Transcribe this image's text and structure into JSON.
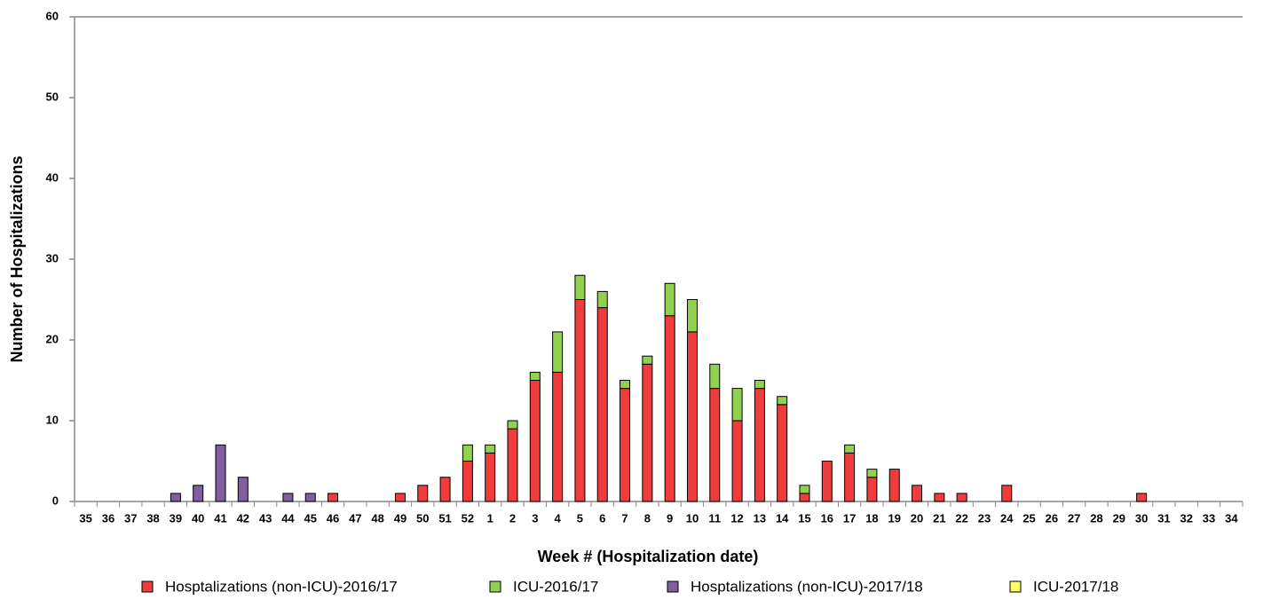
{
  "chart_data": {
    "type": "stacked-bar",
    "x_label": "Week # (Hospitalization date)",
    "y_label": "Number of Hospitalizations",
    "categories": [
      "35",
      "36",
      "37",
      "38",
      "39",
      "40",
      "41",
      "42",
      "43",
      "44",
      "45",
      "46",
      "47",
      "48",
      "49",
      "50",
      "51",
      "52",
      "1",
      "2",
      "3",
      "4",
      "5",
      "6",
      "7",
      "8",
      "9",
      "10",
      "11",
      "12",
      "13",
      "14",
      "15",
      "16",
      "17",
      "18",
      "19",
      "20",
      "21",
      "22",
      "23",
      "24",
      "25",
      "26",
      "27",
      "28",
      "29",
      "30",
      "31",
      "32",
      "33",
      "34"
    ],
    "series": [
      {
        "name": "Hosptalizations (non-ICU)-2016/17",
        "color": "#f03c3c",
        "values": [
          0,
          0,
          0,
          0,
          0,
          0,
          0,
          0,
          0,
          0,
          0,
          1,
          0,
          0,
          1,
          2,
          3,
          5,
          6,
          9,
          15,
          16,
          25,
          24,
          14,
          17,
          23,
          21,
          14,
          10,
          14,
          12,
          1,
          5,
          6,
          3,
          4,
          2,
          1,
          1,
          0,
          2,
          0,
          0,
          0,
          0,
          0,
          1,
          0,
          0,
          0,
          0
        ]
      },
      {
        "name": "ICU-2016/17",
        "color": "#92d050",
        "values": [
          0,
          0,
          0,
          0,
          0,
          0,
          0,
          0,
          0,
          0,
          0,
          0,
          0,
          0,
          0,
          0,
          0,
          2,
          1,
          1,
          1,
          5,
          3,
          2,
          1,
          1,
          4,
          4,
          3,
          4,
          1,
          1,
          1,
          0,
          1,
          1,
          0,
          0,
          0,
          0,
          0,
          0,
          0,
          0,
          0,
          0,
          0,
          0,
          0,
          0,
          0,
          0
        ]
      },
      {
        "name": "Hosptalizations (non-ICU)-2017/18",
        "color": "#7f5fa0",
        "values": [
          0,
          0,
          0,
          0,
          1,
          2,
          7,
          3,
          0,
          1,
          1,
          0,
          0,
          0,
          0,
          0,
          0,
          0,
          0,
          0,
          0,
          0,
          0,
          0,
          0,
          0,
          0,
          0,
          0,
          0,
          0,
          0,
          0,
          0,
          0,
          0,
          0,
          0,
          0,
          0,
          0,
          0,
          0,
          0,
          0,
          0,
          0,
          0,
          0,
          0,
          0,
          0
        ]
      },
      {
        "name": "ICU-2017/18",
        "color": "#ffff66",
        "values": [
          0,
          0,
          0,
          0,
          0,
          0,
          0,
          0,
          0,
          0,
          0,
          0,
          0,
          0,
          0,
          0,
          0,
          0,
          0,
          0,
          0,
          0,
          0,
          0,
          0,
          0,
          0,
          0,
          0,
          0,
          0,
          0,
          0,
          0,
          0,
          0,
          0,
          0,
          0,
          0,
          0,
          0,
          0,
          0,
          0,
          0,
          0,
          0,
          0,
          0,
          0,
          0
        ]
      }
    ],
    "ylim": [
      0,
      60
    ],
    "yticks": [
      0,
      10,
      20,
      30,
      40,
      50,
      60
    ],
    "grid": false
  }
}
